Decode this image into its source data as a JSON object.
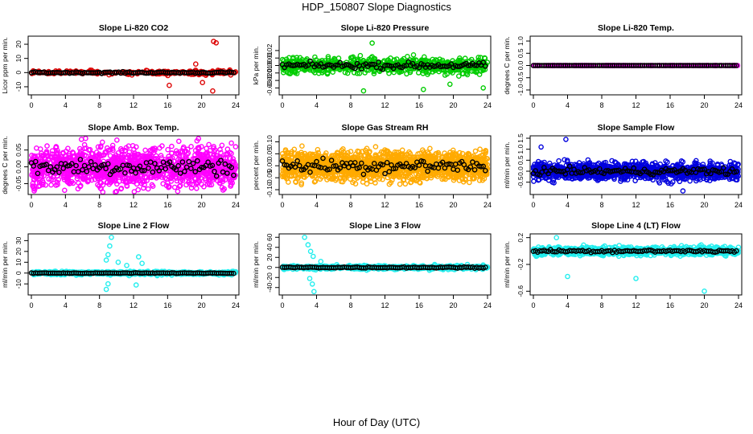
{
  "figure": {
    "title": "HDP_150807  Slope Diagnostics",
    "xlabel": "Hour of Day (UTC)"
  },
  "chart_data": [
    {
      "type": "scatter",
      "title": "Slope Li-820 CO2",
      "ylabel": "Licor ppm per min.",
      "xlim": [
        0,
        24
      ],
      "ylim": [
        -14,
        24
      ],
      "xticks": [
        0,
        4,
        8,
        12,
        16,
        20,
        24
      ],
      "xtick_labels": [
        "0",
        "4",
        "8",
        "12",
        "16",
        "20",
        "24"
      ],
      "yticks": [
        -10,
        0,
        10,
        20
      ],
      "ytick_labels": [
        "-10",
        "0",
        "10",
        "20"
      ],
      "colors": {
        "scatter": "#dd0000",
        "mean": "#000000"
      },
      "noise": {
        "base": 0.6,
        "spread": 3,
        "density": 2.0,
        "mean_jitter": 0.5
      },
      "outliers": [
        {
          "x": 21.4,
          "y": 22
        },
        {
          "x": 21.7,
          "y": 21
        },
        {
          "x": 19.3,
          "y": 6
        },
        {
          "x": 21.3,
          "y": -13
        },
        {
          "x": 16.2,
          "y": -9
        },
        {
          "x": 20.1,
          "y": -7
        }
      ]
    },
    {
      "type": "scatter",
      "title": "Slope Li-820 Pressure",
      "ylabel": "kPa per min.",
      "xlim": [
        0,
        24
      ],
      "ylim": [
        -0.036,
        0.036
      ],
      "xticks": [
        0,
        4,
        8,
        12,
        16,
        20,
        24
      ],
      "xtick_labels": [
        "0",
        "4",
        "8",
        "12",
        "16",
        "20",
        "24"
      ],
      "yticks": [
        -0.03,
        -0.02,
        -0.01,
        0,
        0.01,
        0.02
      ],
      "ytick_labels": [
        "-0.03",
        "-0.02",
        "-0.01",
        "0.00",
        "0.01",
        "0.02"
      ],
      "colors": {
        "scatter": "#00cc00",
        "mean": "#000000"
      },
      "noise": {
        "base": 0.007,
        "spread": 0.012,
        "density": 5.5,
        "mean_jitter": 0.004
      },
      "outliers": [
        {
          "x": 10.5,
          "y": 0.03
        },
        {
          "x": 9.5,
          "y": -0.034
        },
        {
          "x": 16.5,
          "y": -0.032
        },
        {
          "x": 23.5,
          "y": -0.03
        },
        {
          "x": 19.6,
          "y": -0.025
        }
      ]
    },
    {
      "type": "scatter",
      "title": "Slope Li-820 Temp.",
      "ylabel": "degrees C per min.",
      "xlim": [
        0,
        24
      ],
      "ylim": [
        -1.1,
        1.1
      ],
      "xticks": [
        0,
        4,
        8,
        12,
        16,
        20,
        24
      ],
      "xtick_labels": [
        "0",
        "4",
        "8",
        "12",
        "16",
        "20",
        "24"
      ],
      "yticks": [
        -1,
        -0.5,
        0,
        0.5,
        1
      ],
      "ytick_labels": [
        "-1.0",
        "-0.5",
        "0.0",
        "0.5",
        "1.0"
      ],
      "colors": {
        "scatter": "#ff00ff",
        "mean": "#000000"
      },
      "noise": {
        "base": 0.0,
        "spread": 0.0,
        "density": 2.0,
        "mean_jitter": 0.0
      },
      "outliers": []
    },
    {
      "type": "scatter",
      "title": "Slope Amb. Box Temp.",
      "ylabel": "degrees C per min.",
      "xlim": [
        0,
        24
      ],
      "ylim": [
        -0.075,
        0.085
      ],
      "xticks": [
        0,
        4,
        8,
        12,
        16,
        20,
        24
      ],
      "xtick_labels": [
        "0",
        "4",
        "8",
        "12",
        "16",
        "20",
        "24"
      ],
      "yticks": [
        -0.05,
        0,
        0.05
      ],
      "ytick_labels": [
        "-0.05",
        "0.00",
        "0.05"
      ],
      "colors": {
        "scatter": "#ff00ff",
        "mean": "#000000"
      },
      "noise": {
        "base": 0.055,
        "spread": 0.015,
        "density": 11.0,
        "mean_jitter": 0.025
      },
      "outliers": []
    },
    {
      "type": "scatter",
      "title": "Slope Gas Stream RH",
      "ylabel": "percent per min.",
      "xlim": [
        0,
        24
      ],
      "ylim": [
        -0.11,
        0.115
      ],
      "xticks": [
        0,
        4,
        8,
        12,
        16,
        20,
        24
      ],
      "xtick_labels": [
        "0",
        "4",
        "8",
        "12",
        "16",
        "20",
        "24"
      ],
      "yticks": [
        -0.1,
        -0.05,
        0,
        0.05,
        0.1
      ],
      "ytick_labels": [
        "-0.10",
        "-0.05",
        "0.00",
        "0.05",
        "0.10"
      ],
      "colors": {
        "scatter": "#ffaa00",
        "mean": "#000000"
      },
      "noise": {
        "base": 0.045,
        "spread": 0.05,
        "density": 14.0,
        "mean_jitter": 0.03
      },
      "outliers": []
    },
    {
      "type": "scatter",
      "title": "Slope Sample Flow",
      "ylabel": "ml/min per min.",
      "xlim": [
        0,
        24
      ],
      "ylim": [
        -0.95,
        1.5
      ],
      "xticks": [
        0,
        4,
        8,
        12,
        16,
        20,
        24
      ],
      "xtick_labels": [
        "0",
        "4",
        "8",
        "12",
        "16",
        "20",
        "24"
      ],
      "yticks": [
        -0.5,
        0,
        0.5,
        1,
        1.5
      ],
      "ytick_labels": [
        "-0.5",
        "0.0",
        "0.5",
        "1.0",
        "1.5"
      ],
      "colors": {
        "scatter": "#0000dd",
        "mean": "#000000"
      },
      "noise": {
        "base": 0.3,
        "spread": 0.3,
        "density": 10.0,
        "mean_jitter": 0.15
      },
      "outliers": [
        {
          "x": 3.8,
          "y": 1.45
        },
        {
          "x": 0.9,
          "y": 1.1
        },
        {
          "x": 17.5,
          "y": -0.9
        }
      ]
    },
    {
      "type": "scatter",
      "title": "Slope Line 2 Flow",
      "ylabel": "ml/min per min.",
      "xlim": [
        0,
        24
      ],
      "ylim": [
        -18,
        34
      ],
      "xticks": [
        0,
        4,
        8,
        12,
        16,
        20,
        24
      ],
      "xtick_labels": [
        "0",
        "4",
        "8",
        "12",
        "16",
        "20",
        "24"
      ],
      "yticks": [
        -10,
        0,
        10,
        20,
        30
      ],
      "ytick_labels": [
        "-10",
        "0",
        "10",
        "20",
        "30"
      ],
      "colors": {
        "scatter": "#22eeee",
        "mean": "#000000"
      },
      "noise": {
        "base": 1.2,
        "spread": 1.5,
        "density": 4.5,
        "mean_jitter": 0.3
      },
      "outliers": [
        {
          "x": 9.4,
          "y": 33
        },
        {
          "x": 9.2,
          "y": 25
        },
        {
          "x": 9.0,
          "y": 17
        },
        {
          "x": 8.8,
          "y": 12
        },
        {
          "x": 9.0,
          "y": -10
        },
        {
          "x": 8.8,
          "y": -15
        },
        {
          "x": 10.2,
          "y": 10
        },
        {
          "x": 12.6,
          "y": 15
        },
        {
          "x": 13.0,
          "y": 9
        },
        {
          "x": 12.3,
          "y": -11
        },
        {
          "x": 11.2,
          "y": 7
        }
      ]
    },
    {
      "type": "scatter",
      "title": "Slope Line 3 Flow",
      "ylabel": "ml/min per min.",
      "xlim": [
        0,
        24
      ],
      "ylim": [
        -50,
        62
      ],
      "xticks": [
        0,
        4,
        8,
        12,
        16,
        20,
        24
      ],
      "xtick_labels": [
        "0",
        "4",
        "8",
        "12",
        "16",
        "20",
        "24"
      ],
      "yticks": [
        -40,
        -20,
        0,
        20,
        40,
        60
      ],
      "ytick_labels": [
        "-40",
        "-20",
        "0",
        "20",
        "40",
        "60"
      ],
      "colors": {
        "scatter": "#22eeee",
        "mean": "#000000"
      },
      "noise": {
        "base": 3.0,
        "spread": 3.0,
        "density": 4.5,
        "mean_jitter": 1.2
      },
      "outliers": [
        {
          "x": 2.6,
          "y": 60
        },
        {
          "x": 3.0,
          "y": 45
        },
        {
          "x": 3.3,
          "y": 32
        },
        {
          "x": 3.6,
          "y": 22
        },
        {
          "x": 3.2,
          "y": -22
        },
        {
          "x": 3.5,
          "y": -33
        },
        {
          "x": 3.7,
          "y": -48
        },
        {
          "x": 4.5,
          "y": 12
        }
      ]
    },
    {
      "type": "scatter",
      "title": "Slope Line 4 (LT) Flow",
      "ylabel": "ml/min per min.",
      "xlim": [
        0,
        24
      ],
      "ylim": [
        -0.62,
        0.22
      ],
      "xticks": [
        0,
        4,
        8,
        12,
        16,
        20,
        24
      ],
      "xtick_labels": [
        "0",
        "4",
        "8",
        "12",
        "16",
        "20",
        "24"
      ],
      "yticks": [
        -0.6,
        -0.2,
        0.2
      ],
      "ytick_labels": [
        "-0.6",
        "-0.2",
        "0.2"
      ],
      "colors": {
        "scatter": "#22eeee",
        "mean": "#000000"
      },
      "noise": {
        "base": 0.05,
        "spread": 0.04,
        "density": 8.0,
        "mean_jitter": 0.02
      },
      "outliers": [
        {
          "x": 2.7,
          "y": 0.2
        },
        {
          "x": 4.0,
          "y": -0.38
        },
        {
          "x": 12.0,
          "y": -0.41
        },
        {
          "x": 20.0,
          "y": -0.6
        }
      ]
    }
  ]
}
